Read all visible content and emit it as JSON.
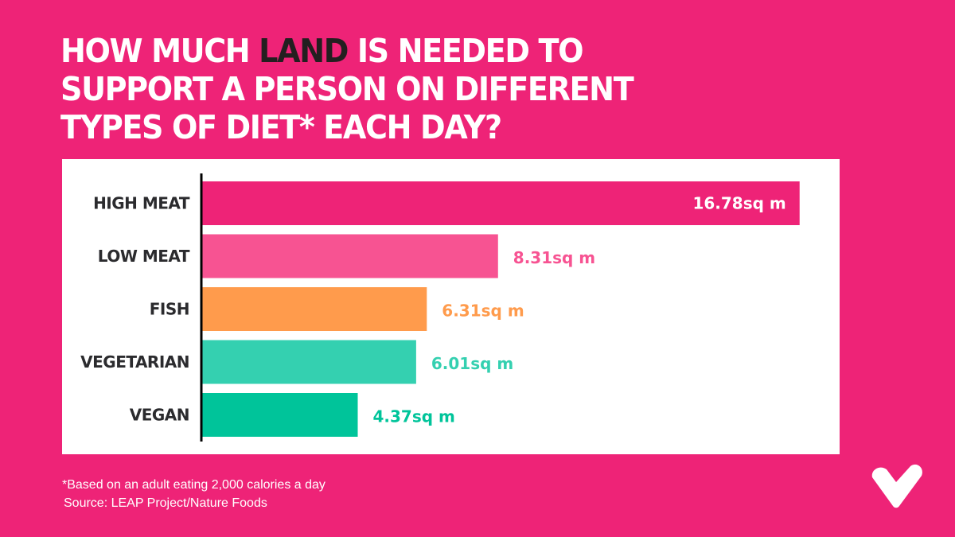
{
  "title": {
    "before": "HOW MUCH ",
    "highlight": "LAND",
    "after": " IS NEEDED TO",
    "line2": "SUPPORT A PERSON ON DIFFERENT",
    "line3": "TYPES OF DIET* EACH DAY?"
  },
  "footer": {
    "note": "*Based on an adult eating 2,000 calories a day",
    "source": "Source: LEAP Project/Nature Foods"
  },
  "logo": "heart-check-icon",
  "chart_data": {
    "type": "bar",
    "orientation": "horizontal",
    "title": "HOW MUCH LAND IS NEEDED TO SUPPORT A PERSON ON DIFFERENT TYPES OF DIET* EACH DAY?",
    "xlabel": "",
    "ylabel": "",
    "unit": "sq m",
    "xlim": [
      0,
      17.3
    ],
    "grid": false,
    "categories": [
      "HIGH MEAT",
      "LOW MEAT",
      "FISH",
      "VEGETARIAN",
      "VEGAN"
    ],
    "values": [
      16.78,
      8.31,
      6.31,
      6.01,
      4.37
    ],
    "labels": [
      "16.78sq m",
      "8.31sq m",
      "6.31sq m",
      "6.01sq m",
      "4.37sq m"
    ],
    "colors": [
      "#EE2377",
      "#F75392",
      "#FF9B4C",
      "#34D0B0",
      "#00C49A"
    ],
    "label_inside": [
      true,
      false,
      false,
      false,
      false
    ]
  }
}
